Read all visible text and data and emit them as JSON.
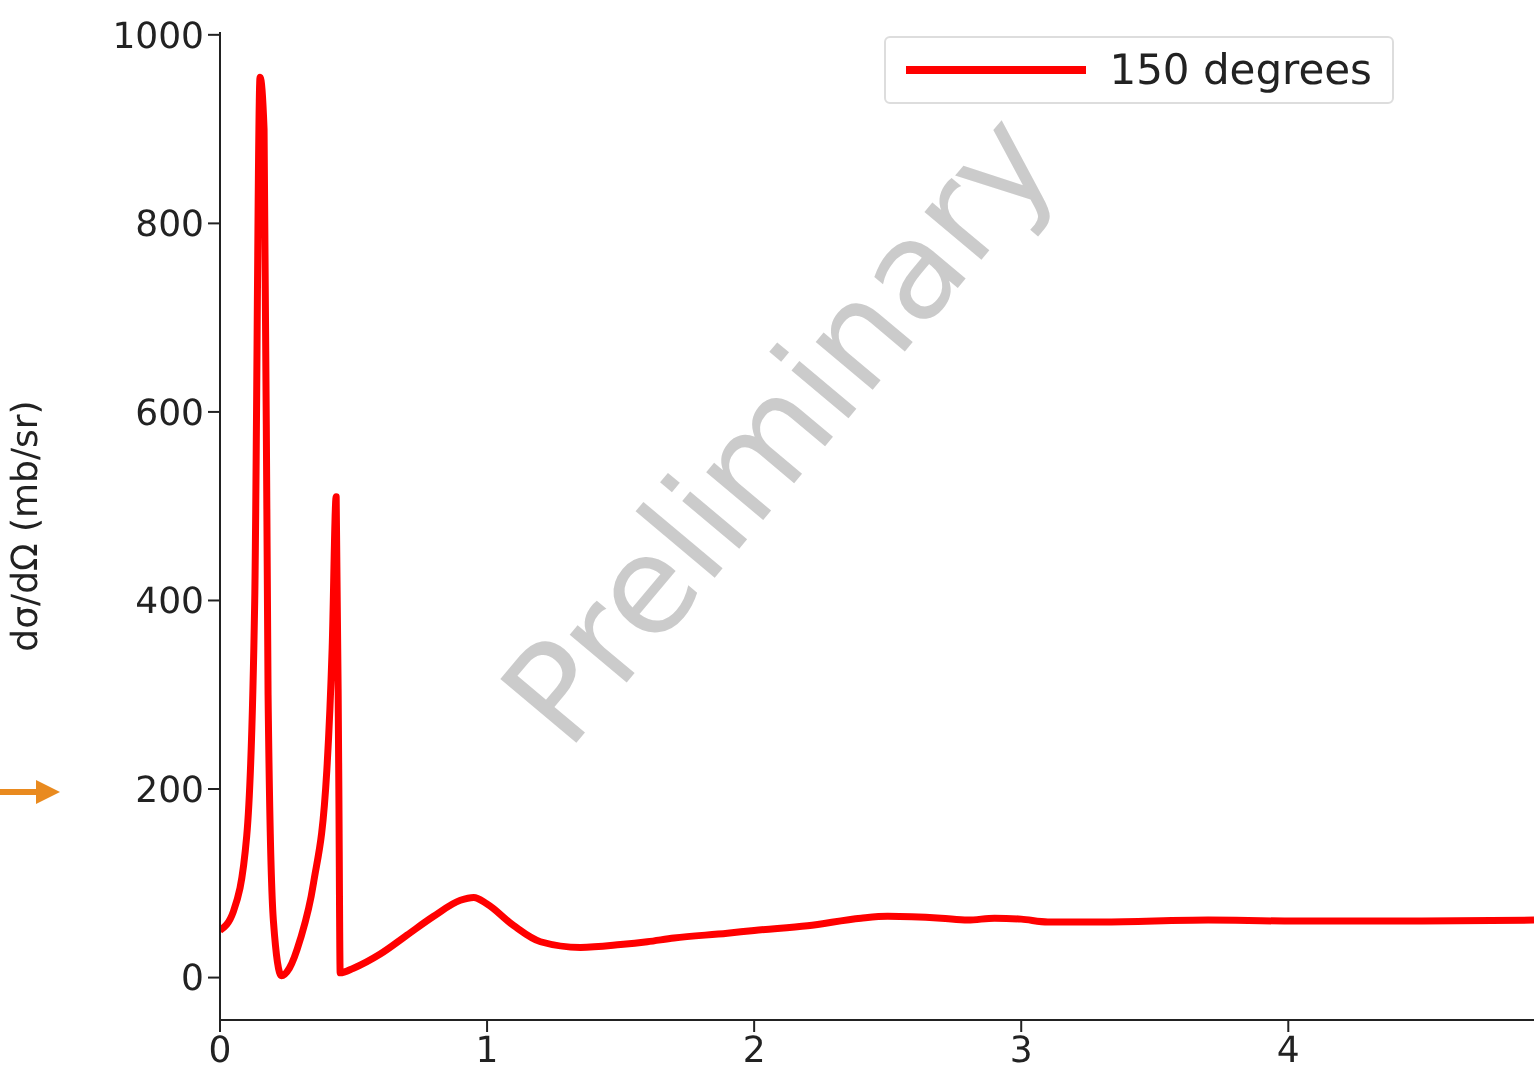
{
  "chart_data": {
    "type": "line",
    "ylabel": "dσ/dΩ (mb/sr)",
    "annotations": [
      "Preliminary"
    ],
    "x": [
      0,
      0.05,
      0.1,
      0.13,
      0.15,
      0.165,
      0.18,
      0.2,
      0.23,
      0.26,
      0.3,
      0.35,
      0.4,
      0.42,
      0.435,
      0.445,
      0.45,
      0.5,
      0.6,
      0.7,
      0.8,
      0.9,
      0.95,
      1.0,
      1.1,
      1.2,
      1.35,
      1.5,
      1.6,
      1.7,
      1.9,
      2.0,
      2.2,
      2.4,
      2.5,
      2.7,
      2.8,
      2.9,
      3.0,
      3.1,
      3.3,
      3.7,
      4.0,
      4.5,
      4.92
    ],
    "series": [
      {
        "name": "150 degrees",
        "color": "#ff0000",
        "values": [
          50,
          70,
          150,
          400,
          955,
          900,
          300,
          60,
          2,
          10,
          40,
          100,
          220,
          350,
          510,
          200,
          5,
          10,
          25,
          45,
          65,
          82,
          85,
          78,
          55,
          38,
          32,
          35,
          38,
          42,
          47,
          50,
          55,
          63,
          65,
          63,
          61,
          63,
          62,
          59,
          59,
          61,
          60,
          60,
          61
        ]
      }
    ],
    "xlim": [
      0,
      4.92
    ],
    "xticks": [
      0,
      1,
      2,
      3,
      4
    ],
    "ylim": [
      -45,
      1003
    ],
    "yticks": [
      0,
      200,
      400,
      600,
      800,
      1000
    ],
    "legend": "top right",
    "marker": "none",
    "line_style": "solid"
  }
}
